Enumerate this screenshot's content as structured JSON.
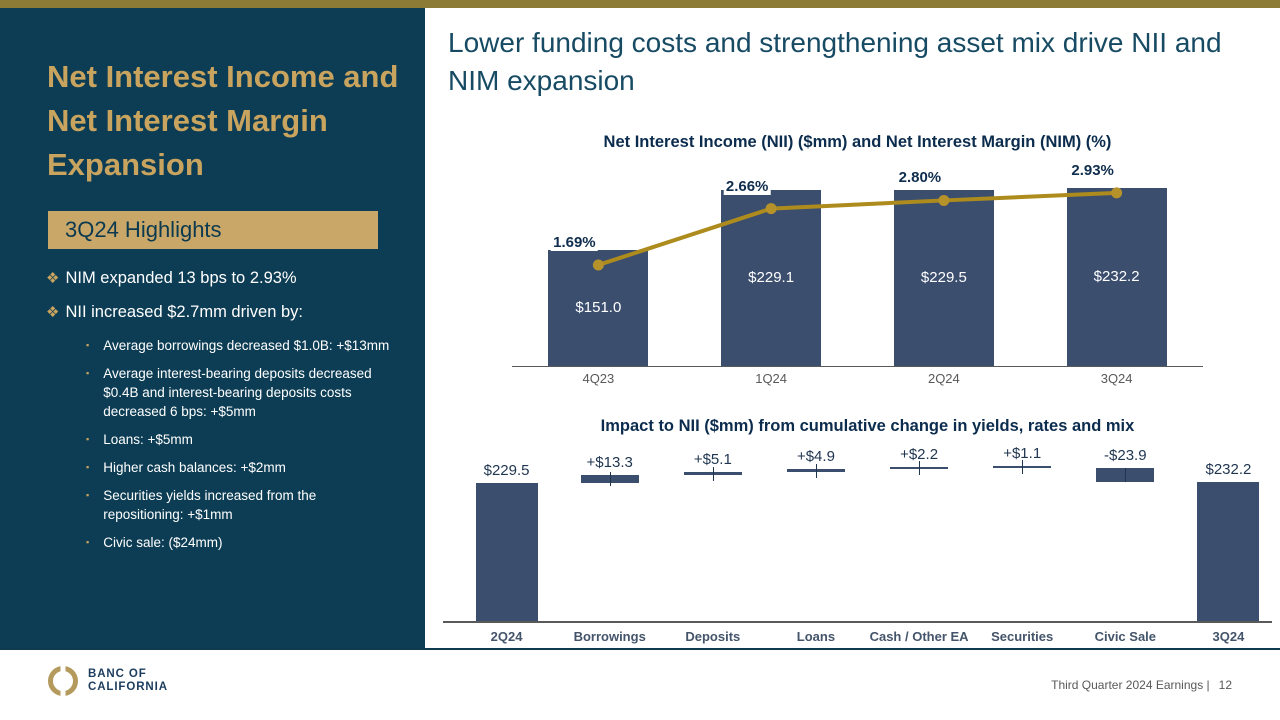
{
  "sidebar": {
    "title": "Net Interest Income and Net Interest Margin Expansion",
    "highlights_header": "3Q24 Highlights",
    "bullets": [
      "NIM expanded 13 bps to 2.93%",
      "NII increased $2.7mm driven by:"
    ],
    "sub_bullets": [
      "Average borrowings decreased $1.0B: +$13mm",
      "Average interest-bearing deposits decreased $0.4B and interest-bearing deposits costs decreased 6 bps: +$5mm",
      "Loans: +$5mm",
      "Higher cash balances: +$2mm",
      "Securities yields increased from the repositioning: +$1mm",
      "Civic sale: ($24mm)"
    ]
  },
  "header": {
    "title": "Lower funding costs and strengthening asset mix drive NII and NIM expansion"
  },
  "footer": {
    "brand_line1": "BANC OF",
    "brand_line2": "CALIFORNIA",
    "page_label": "Third Quarter 2024 Earnings |",
    "page_number": "12"
  },
  "colors": {
    "accent_gold": "#c9a45f",
    "strip_gold": "#8b7b37",
    "sidebar_bg": "#0d3d54",
    "bar_navy": "#3b4e6e",
    "line_gold": "#ad8b1d",
    "marker_gold": "#b5922a"
  },
  "chart_data": [
    {
      "type": "bar",
      "title": "Net Interest Income (NII) ($mm) and Net Interest Margin (NIM) (%)",
      "categories": [
        "4Q23",
        "1Q24",
        "2Q24",
        "3Q24"
      ],
      "series": [
        {
          "name": "NII ($mm)",
          "type": "bar",
          "values": [
            151.0,
            229.1,
            229.5,
            232.2
          ],
          "labels": [
            "$151.0",
            "$229.1",
            "$229.5",
            "$232.2"
          ],
          "color": "#3b4e6e"
        },
        {
          "name": "NIM (%)",
          "type": "line",
          "values": [
            1.69,
            2.66,
            2.8,
            2.93
          ],
          "labels": [
            "1.69%",
            "2.66%",
            "2.80%",
            "2.93%"
          ],
          "color": "#ad8b1d"
        }
      ],
      "bar_axis_range": [
        0,
        245
      ],
      "line_axis_range": [
        1.5,
        3.1
      ],
      "grid": false,
      "legend": "none"
    },
    {
      "type": "bar",
      "subtype": "waterfall",
      "title": "Impact to NII ($mm) from cumulative change in yields, rates and mix",
      "categories": [
        "2Q24",
        "Borrowings",
        "Deposits",
        "Loans",
        "Cash / Other EA",
        "Securities",
        "Civic Sale",
        "3Q24"
      ],
      "values": [
        229.5,
        13.3,
        5.1,
        4.9,
        2.2,
        1.1,
        -23.9,
        232.2
      ],
      "labels": [
        "$229.5",
        "+$13.3",
        "+$5.1",
        "+$4.9",
        "+$2.2",
        "+$1.1",
        "-$23.9",
        "$232.2"
      ],
      "roles": [
        "total",
        "delta",
        "delta",
        "delta",
        "delta",
        "delta",
        "delta",
        "total"
      ],
      "color": "#3b4e6e",
      "axis_range": [
        0,
        260
      ],
      "grid": false,
      "legend": "none"
    }
  ]
}
